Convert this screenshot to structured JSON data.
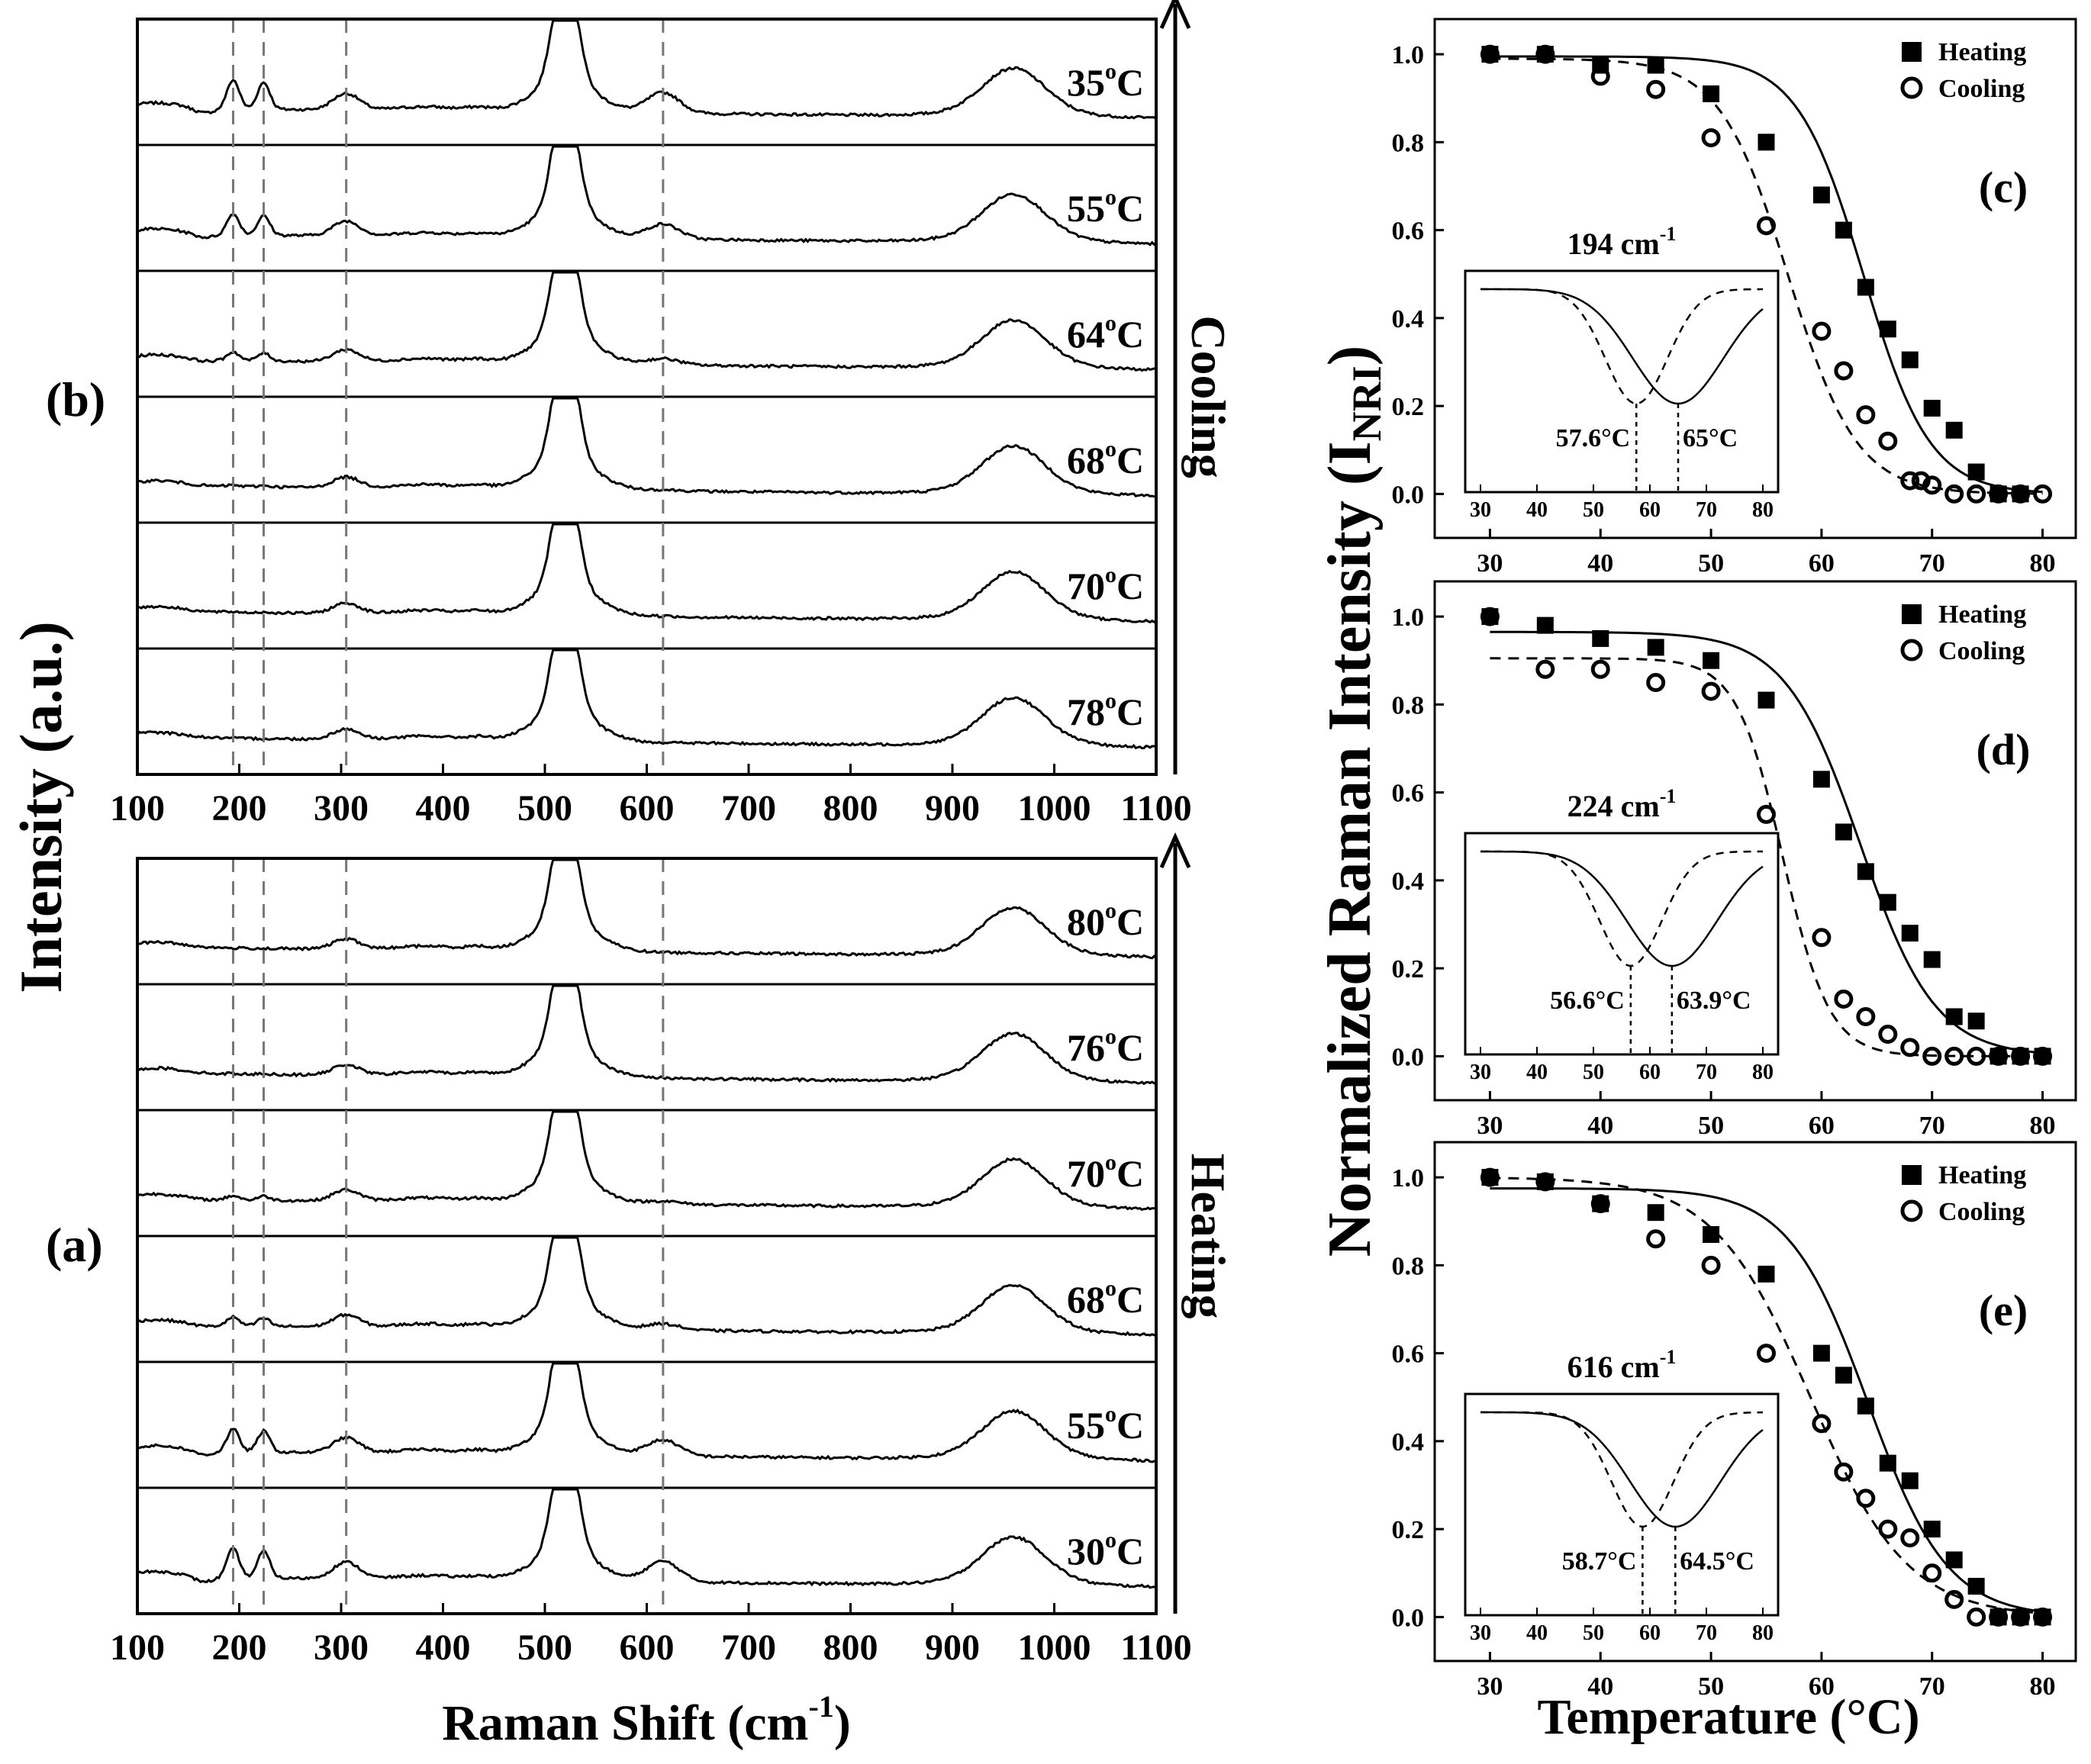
{
  "figure": {
    "left_ylabel": "Intensity (a.u.)",
    "right_ylabel": "Normalized Raman Intensity (I",
    "right_ylabel_sub": "NRI",
    "right_ylabel_close": ")"
  },
  "chart_data": [
    {
      "id": "b",
      "type": "line",
      "panel_label": "(b)",
      "direction_label": "Cooling",
      "xlabel": "",
      "xlim": [
        100,
        1100
      ],
      "xticks": [
        "100",
        "200",
        "300",
        "400",
        "500",
        "600",
        "700",
        "800",
        "900",
        "1000",
        "1100"
      ],
      "dashed_lines_x": [
        194,
        224,
        305,
        616
      ],
      "series": [
        {
          "name": "35",
          "unit": "oC",
          "peak_strength": 1.0
        },
        {
          "name": "55",
          "unit": "oC",
          "peak_strength": 0.72
        },
        {
          "name": "64",
          "unit": "oC",
          "peak_strength": 0.3
        },
        {
          "name": "68",
          "unit": "oC",
          "peak_strength": 0.05
        },
        {
          "name": "70",
          "unit": "oC",
          "peak_strength": 0.02
        },
        {
          "name": "78",
          "unit": "oC",
          "peak_strength": 0.0
        }
      ]
    },
    {
      "id": "a",
      "type": "line",
      "panel_label": "(a)",
      "direction_label": "Heating",
      "xlabel": "Raman Shift (cm",
      "xlabel_sup": "-1",
      "xlabel_close": ")",
      "xlim": [
        100,
        1100
      ],
      "xticks": [
        "100",
        "200",
        "300",
        "400",
        "500",
        "600",
        "700",
        "800",
        "900",
        "1000",
        "1100"
      ],
      "dashed_lines_x": [
        194,
        224,
        305,
        616
      ],
      "series": [
        {
          "name": "80",
          "unit": "oC",
          "peak_strength": 0.0
        },
        {
          "name": "76",
          "unit": "oC",
          "peak_strength": 0.02
        },
        {
          "name": "70",
          "unit": "oC",
          "peak_strength": 0.15
        },
        {
          "name": "68",
          "unit": "oC",
          "peak_strength": 0.3
        },
        {
          "name": "55",
          "unit": "oC",
          "peak_strength": 0.78
        },
        {
          "name": "30",
          "unit": "oC",
          "peak_strength": 1.0
        }
      ]
    },
    {
      "id": "c",
      "type": "scatter",
      "panel_label": "(c)",
      "mode_label": "194 cm",
      "mode_sup": "-1",
      "xlim": [
        25,
        83
      ],
      "ylim": [
        -0.1,
        1.08
      ],
      "xticks": [
        "30",
        "40",
        "50",
        "60",
        "70",
        "80"
      ],
      "yticks": [
        "0.0",
        "0.2",
        "0.4",
        "0.6",
        "0.8",
        "1.0"
      ],
      "legend": [
        "Heating",
        "Cooling"
      ],
      "heating": {
        "x": [
          30,
          35,
          40,
          45,
          50,
          55,
          60,
          62,
          64,
          66,
          68,
          70,
          72,
          74,
          76,
          78
        ],
        "y": [
          1.0,
          1.0,
          0.975,
          0.975,
          0.91,
          0.8,
          0.68,
          0.6,
          0.47,
          0.375,
          0.305,
          0.195,
          0.145,
          0.05,
          0.0,
          0.0
        ],
        "fit_tc": 63.8,
        "fit_w": 3.0,
        "fit_top": 0.995
      },
      "cooling": {
        "x": [
          30,
          35,
          40,
          45,
          50,
          55,
          60,
          62,
          64,
          66,
          68,
          69,
          70,
          72,
          74,
          76,
          78,
          80
        ],
        "y": [
          1.0,
          1.0,
          0.95,
          0.92,
          0.81,
          0.61,
          0.37,
          0.28,
          0.18,
          0.12,
          0.03,
          0.03,
          0.02,
          0.0,
          0.0,
          0.0,
          0.0,
          0.0
        ],
        "fit_tc": 57.0,
        "fit_w": 3.1,
        "fit_top": 0.99
      },
      "inset": {
        "xticks": [
          "30",
          "40",
          "50",
          "60",
          "70",
          "80"
        ],
        "tc_cooling": 57.6,
        "tc_heating": 65,
        "label_cooling": "57.6°C",
        "label_heating": "65°C"
      }
    },
    {
      "id": "d",
      "type": "scatter",
      "panel_label": "(d)",
      "mode_label": "224 cm",
      "mode_sup": "-1",
      "xlim": [
        25,
        83
      ],
      "ylim": [
        -0.1,
        1.08
      ],
      "xticks": [
        "30",
        "40",
        "50",
        "60",
        "70",
        "80"
      ],
      "yticks": [
        "0.0",
        "0.2",
        "0.4",
        "0.6",
        "0.8",
        "1.0"
      ],
      "legend": [
        "Heating",
        "Cooling"
      ],
      "heating": {
        "x": [
          30,
          35,
          40,
          45,
          50,
          55,
          60,
          62,
          64,
          66,
          68,
          70,
          72,
          74,
          76,
          78,
          80
        ],
        "y": [
          1.0,
          0.98,
          0.95,
          0.93,
          0.9,
          0.81,
          0.63,
          0.51,
          0.42,
          0.35,
          0.28,
          0.22,
          0.09,
          0.08,
          0.0,
          0.0,
          0.0
        ],
        "fit_tc": 63.5,
        "fit_w": 3.4,
        "fit_top": 0.965
      },
      "cooling": {
        "x": [
          30,
          35,
          40,
          45,
          50,
          55,
          60,
          62,
          64,
          66,
          68,
          70,
          72,
          74,
          76,
          78,
          80
        ],
        "y": [
          1.0,
          0.88,
          0.88,
          0.85,
          0.83,
          0.55,
          0.27,
          0.13,
          0.09,
          0.05,
          0.02,
          0.0,
          0.0,
          0.0,
          0.0,
          0.0,
          0.0
        ],
        "fit_tc": 56.5,
        "fit_w": 2.1,
        "fit_top": 0.905
      },
      "inset": {
        "xticks": [
          "30",
          "40",
          "50",
          "60",
          "70",
          "80"
        ],
        "tc_cooling": 56.6,
        "tc_heating": 63.9,
        "label_cooling": "56.6°C",
        "label_heating": "63.9°C"
      }
    },
    {
      "id": "e",
      "type": "scatter",
      "panel_label": "(e)",
      "mode_label": "616 cm",
      "mode_sup": "-1",
      "xlim": [
        25,
        83
      ],
      "ylim": [
        -0.1,
        1.08
      ],
      "xticks": [
        "30",
        "40",
        "50",
        "60",
        "70",
        "80"
      ],
      "yticks": [
        "0.0",
        "0.2",
        "0.4",
        "0.6",
        "0.8",
        "1.0"
      ],
      "legend": [
        "Heating",
        "Cooling"
      ],
      "heating": {
        "x": [
          30,
          35,
          40,
          45,
          50,
          55,
          60,
          62,
          64,
          66,
          68,
          70,
          72,
          74,
          76,
          78,
          80
        ],
        "y": [
          1.0,
          0.99,
          0.94,
          0.92,
          0.87,
          0.78,
          0.6,
          0.55,
          0.48,
          0.35,
          0.31,
          0.2,
          0.13,
          0.07,
          0.0,
          0.0,
          0.0
        ],
        "fit_tc": 64.2,
        "fit_w": 3.6,
        "fit_top": 0.975
      },
      "cooling": {
        "x": [
          30,
          35,
          40,
          45,
          50,
          55,
          60,
          62,
          64,
          66,
          68,
          70,
          72,
          74,
          76,
          78,
          80
        ],
        "y": [
          1.0,
          0.99,
          0.94,
          0.86,
          0.8,
          0.6,
          0.44,
          0.33,
          0.27,
          0.2,
          0.18,
          0.1,
          0.04,
          0.0,
          0.0,
          0.0,
          0.0
        ],
        "fit_tc": 59.0,
        "fit_w": 4.4,
        "fit_top": 1.0
      },
      "inset": {
        "xticks": [
          "30",
          "40",
          "50",
          "60",
          "70",
          "80"
        ],
        "tc_cooling": 58.7,
        "tc_heating": 64.5,
        "label_cooling": "58.7°C",
        "label_heating": "64.5°C"
      }
    }
  ],
  "scatter_xlabel": "Temperature (°C)"
}
